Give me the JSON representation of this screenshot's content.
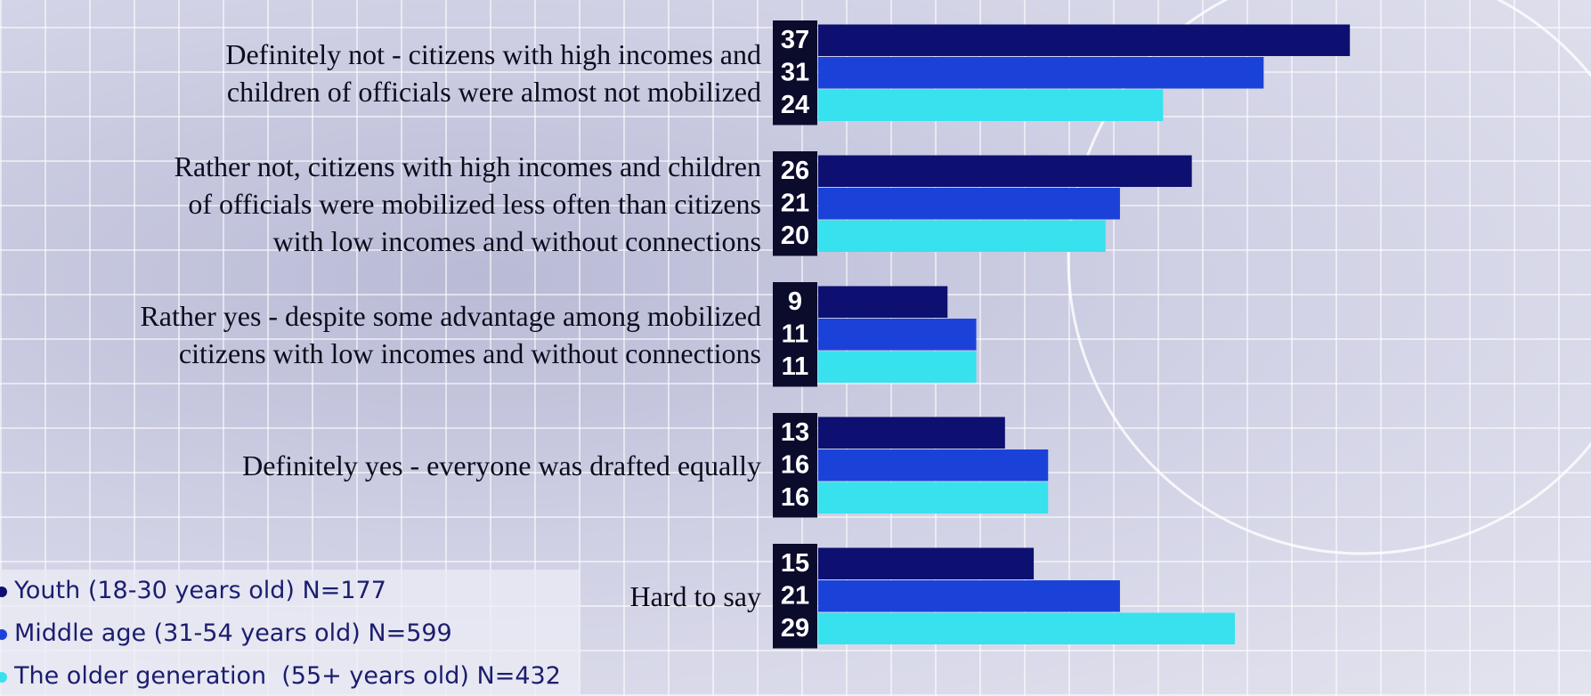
{
  "chart_data": {
    "type": "bar",
    "orientation": "horizontal",
    "categories": [
      "Definitely not - citizens with high incomes and\nchildren of officials were almost not mobilized",
      "Rather not, citizens with high incomes and children\nof officials were mobilized less often than citizens\nwith low incomes and without connections",
      "Rather yes - despite some advantage among mobilized\ncitizens with low incomes and without connections",
      "Definitely yes - everyone was drafted equally",
      "Hard to say"
    ],
    "series": [
      {
        "name": "Youth (18-30 years old) N=177",
        "color": "#0d1070",
        "values": [
          37,
          26,
          9,
          13,
          15
        ]
      },
      {
        "name": "Middle age (31-54 years old) N=599",
        "color": "#1b42d8",
        "values": [
          31,
          21,
          11,
          16,
          21
        ]
      },
      {
        "name": "The older generation  (55+ years old) N=432",
        "color": "#38e1ee",
        "values": [
          24,
          20,
          11,
          16,
          29
        ]
      }
    ],
    "legend": "bottom-left"
  }
}
